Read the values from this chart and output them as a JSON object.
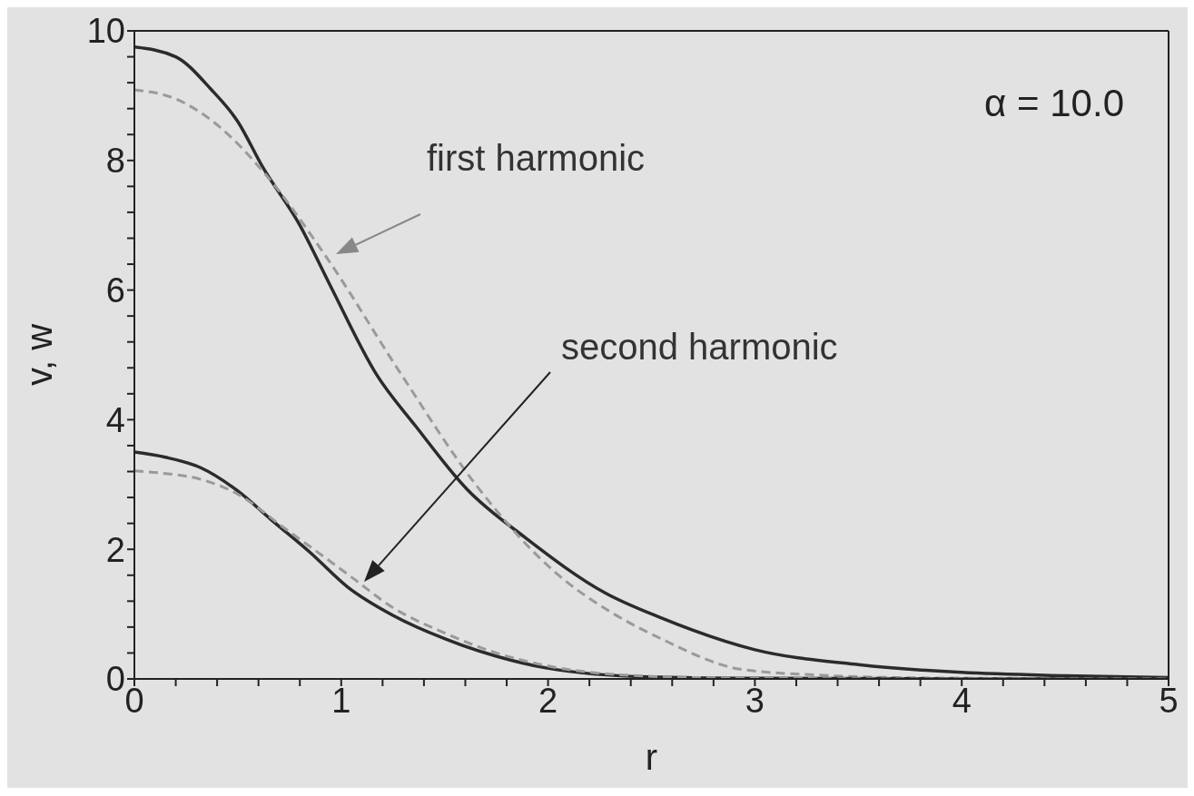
{
  "chart_data": {
    "type": "line",
    "xlabel": "r",
    "ylabel": "v, w",
    "xlim": [
      0,
      5
    ],
    "ylim": [
      0,
      10
    ],
    "xticks": [
      0,
      {
        "value": 0.2,
        "label": null
      },
      {
        "value": 0.4,
        "label": null
      },
      {
        "value": 0.6,
        "label": null
      },
      {
        "value": 0.8,
        "label": null
      },
      1,
      {
        "value": 1.2,
        "label": null
      },
      {
        "value": 1.4,
        "label": null
      },
      {
        "value": 1.6,
        "label": null
      },
      {
        "value": 1.8,
        "label": null
      },
      2,
      {
        "value": 2.2,
        "label": null
      },
      {
        "value": 2.4,
        "label": null
      },
      {
        "value": 2.6,
        "label": null
      },
      {
        "value": 2.8,
        "label": null
      },
      3,
      {
        "value": 3.2,
        "label": null
      },
      {
        "value": 3.4,
        "label": null
      },
      {
        "value": 3.6,
        "label": null
      },
      {
        "value": 3.8,
        "label": null
      },
      4,
      {
        "value": 4.2,
        "label": null
      },
      {
        "value": 4.4,
        "label": null
      },
      {
        "value": 4.6,
        "label": null
      },
      {
        "value": 4.8,
        "label": null
      },
      5
    ],
    "yticks": [
      0,
      {
        "value": 0.4,
        "label": null
      },
      {
        "value": 0.8,
        "label": null
      },
      {
        "value": 1.2,
        "label": null
      },
      {
        "value": 1.6,
        "label": null
      },
      2,
      {
        "value": 2.4,
        "label": null
      },
      {
        "value": 2.8,
        "label": null
      },
      {
        "value": 3.2,
        "label": null
      },
      {
        "value": 3.6,
        "label": null
      },
      4,
      {
        "value": 4.4,
        "label": null
      },
      {
        "value": 4.8,
        "label": null
      },
      {
        "value": 5.2,
        "label": null
      },
      {
        "value": 5.6,
        "label": null
      },
      6,
      {
        "value": 6.4,
        "label": null
      },
      {
        "value": 6.8,
        "label": null
      },
      {
        "value": 7.2,
        "label": null
      },
      {
        "value": 7.6,
        "label": null
      },
      8,
      {
        "value": 8.4,
        "label": null
      },
      {
        "value": 8.8,
        "label": null
      },
      {
        "value": 9.2,
        "label": null
      },
      {
        "value": 9.6,
        "label": null
      },
      10
    ],
    "grid": false,
    "legend": false,
    "marker": "none",
    "series": [
      {
        "color": "#2b2b2b",
        "line_style": "solid",
        "x": [
          0,
          0.2,
          0.37,
          0.5,
          0.62,
          0.8,
          0.95,
          1.17,
          1.36,
          1.61,
          1.89,
          2.28,
          2.54,
          3.0,
          3.5,
          4.0,
          4.5,
          5.0
        ],
        "values": [
          9.75,
          9.6,
          9.1,
          8.6,
          7.9,
          7.0,
          6.05,
          4.7,
          3.9,
          2.92,
          2.18,
          1.32,
          0.95,
          0.45,
          0.22,
          0.1,
          0.05,
          0.02
        ]
      },
      {
        "color": "#9a9a9a",
        "line_style": "dashed",
        "x": [
          0,
          0.2,
          0.4,
          0.63,
          0.93,
          1.29,
          1.65,
          2.04,
          2.32,
          2.54,
          2.93,
          3.3,
          3.7,
          4.2,
          5.0
        ],
        "values": [
          9.09,
          8.95,
          8.55,
          7.8,
          6.5,
          4.7,
          3.0,
          1.63,
          1.0,
          0.63,
          0.15,
          0.06,
          0.02,
          0.01,
          0
        ]
      },
      {
        "color": "#2b2b2b",
        "line_style": "solid",
        "x": [
          0,
          0.15,
          0.32,
          0.5,
          0.66,
          0.85,
          1.03,
          1.25,
          1.5,
          1.75,
          1.99,
          2.49,
          3.0,
          4.0,
          5.0
        ],
        "values": [
          3.5,
          3.42,
          3.26,
          2.9,
          2.46,
          1.95,
          1.42,
          0.98,
          0.62,
          0.35,
          0.17,
          0.03,
          0.01,
          0,
          0
        ]
      },
      {
        "color": "#9a9a9a",
        "line_style": "dashed",
        "x": [
          0,
          0.15,
          0.32,
          0.5,
          0.72,
          0.88,
          1.05,
          1.25,
          1.5,
          1.75,
          2.0,
          2.5,
          3.0,
          4.0,
          5.0
        ],
        "values": [
          3.21,
          3.17,
          3.08,
          2.85,
          2.34,
          1.97,
          1.57,
          1.1,
          0.71,
          0.4,
          0.2,
          0.04,
          0.01,
          0,
          0
        ]
      }
    ],
    "annotations": [
      "first harmonic",
      "second harmonic",
      "α = 10.0"
    ]
  }
}
